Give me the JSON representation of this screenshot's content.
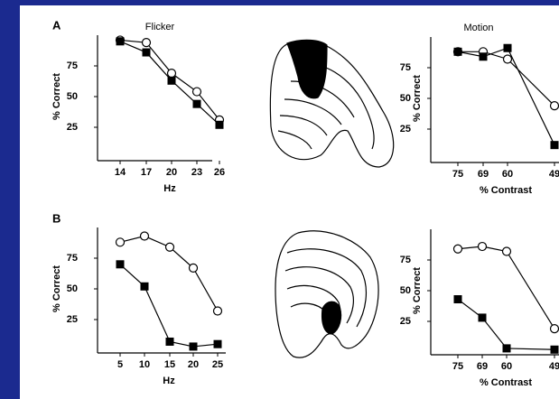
{
  "panel_labels": [
    "A",
    "B"
  ],
  "chart_data": [
    {
      "type": "line",
      "title": "Flicker",
      "xlabel": "Hz",
      "ylabel": "% Correct",
      "categories": [
        "14",
        "17",
        "20",
        "23",
        "26"
      ],
      "series": [
        {
          "marker": "circle-open",
          "color": "#000000",
          "values": [
            96,
            94,
            69,
            54,
            31
          ]
        },
        {
          "marker": "square",
          "color": "#000000",
          "values": [
            95,
            86,
            63,
            44,
            27
          ]
        }
      ],
      "ylim": [
        0,
        100
      ],
      "yticks": [
        25,
        50,
        75
      ]
    },
    {
      "type": "line",
      "title": "Motion",
      "xlabel": "% Contrast",
      "ylabel": "% Correct",
      "categories": [
        "75",
        "69",
        "60",
        "49"
      ],
      "series": [
        {
          "marker": "circle-open",
          "color": "#000000",
          "values": [
            88,
            88,
            82,
            44
          ]
        },
        {
          "marker": "square",
          "color": "#000000",
          "values": [
            88,
            84,
            91,
            12
          ]
        }
      ],
      "ylim": [
        0,
        100
      ],
      "yticks": [
        25,
        50,
        75
      ]
    },
    {
      "type": "line",
      "xlabel": "Hz",
      "ylabel": "% Correct",
      "categories": [
        "5",
        "10",
        "15",
        "20",
        "25"
      ],
      "series": [
        {
          "marker": "circle-open",
          "color": "#000000",
          "values": [
            88,
            93,
            84,
            67,
            32
          ]
        },
        {
          "marker": "square",
          "color": "#000000",
          "values": [
            70,
            52,
            7,
            3,
            5
          ]
        }
      ],
      "ylim": [
        0,
        100
      ],
      "yticks": [
        25,
        50,
        75
      ]
    },
    {
      "type": "line",
      "xlabel": "% Contrast",
      "ylabel": "% Correct",
      "categories": [
        "75",
        "69",
        "60",
        "49"
      ],
      "series": [
        {
          "marker": "circle-open",
          "color": "#000000",
          "values": [
            84,
            86,
            82,
            19
          ]
        },
        {
          "marker": "square",
          "color": "#000000",
          "values": [
            43,
            28,
            3,
            2
          ]
        }
      ],
      "ylim": [
        0,
        100
      ],
      "yticks": [
        25,
        50,
        75
      ]
    }
  ]
}
